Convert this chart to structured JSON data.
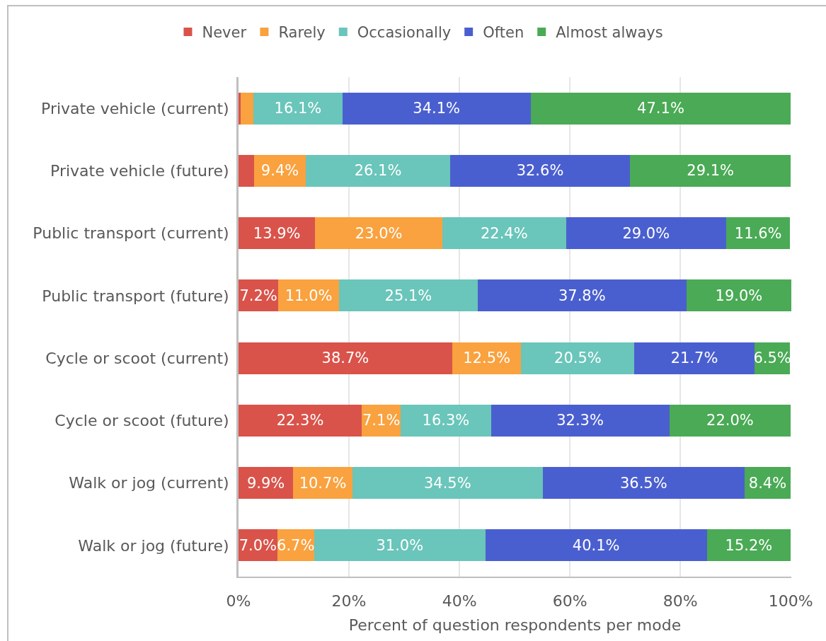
{
  "chart_data": {
    "type": "bar",
    "orientation": "horizontal",
    "stacked": true,
    "xlabel": "Percent of question respondents per mode",
    "categories": [
      "Private vehicle (current)",
      "Private vehicle (future)",
      "Public transport (current)",
      "Public transport (future)",
      "Cycle or scoot (current)",
      "Cycle or scoot (future)",
      "Walk or jog (current)",
      "Walk or jog (future)"
    ],
    "series": [
      {
        "name": "Never",
        "color": "#d9534a",
        "values": [
          0.4,
          2.8,
          13.9,
          7.2,
          38.7,
          22.3,
          9.9,
          7.0
        ],
        "value_labels": [
          null,
          null,
          "13.9%",
          "7.2%",
          "38.7%",
          "22.3%",
          "9.9%",
          "7.0%"
        ]
      },
      {
        "name": "Rarely",
        "color": "#f9a23f",
        "values": [
          2.3,
          9.4,
          23.0,
          11.0,
          12.5,
          7.1,
          10.7,
          6.7
        ],
        "value_labels": [
          null,
          "9.4%",
          "23.0%",
          "11.0%",
          "12.5%",
          "7.1%",
          "10.7%",
          "6.7%"
        ]
      },
      {
        "name": "Occasionally",
        "color": "#6ac5ba",
        "values": [
          16.1,
          26.1,
          22.4,
          25.1,
          20.5,
          16.3,
          34.5,
          31.0
        ],
        "value_labels": [
          "16.1%",
          "26.1%",
          "22.4%",
          "25.1%",
          "20.5%",
          "16.3%",
          "34.5%",
          "31.0%"
        ]
      },
      {
        "name": "Often",
        "color": "#4a5fcf",
        "values": [
          34.1,
          32.6,
          29.0,
          37.8,
          21.7,
          32.3,
          36.5,
          40.1
        ],
        "value_labels": [
          "34.1%",
          "32.6%",
          "29.0%",
          "37.8%",
          "21.7%",
          "32.3%",
          "36.5%",
          "40.1%"
        ]
      },
      {
        "name": "Almost always",
        "color": "#4aaa55",
        "values": [
          47.1,
          29.1,
          11.6,
          19.0,
          6.5,
          22.0,
          8.4,
          15.2
        ],
        "value_labels": [
          "47.1%",
          "29.1%",
          "11.6%",
          "19.0%",
          "6.5%",
          "22.0%",
          "8.4%",
          "15.2%"
        ]
      }
    ],
    "xlim": [
      0,
      100.1
    ],
    "xticks": [
      {
        "value": 0,
        "label": "0%"
      },
      {
        "value": 20,
        "label": "20%"
      },
      {
        "value": 40,
        "label": "40%"
      },
      {
        "value": 60,
        "label": "60%"
      },
      {
        "value": 80,
        "label": "80%"
      },
      {
        "value": 100,
        "label": "100%"
      }
    ],
    "grid": "x",
    "legend": "top"
  }
}
